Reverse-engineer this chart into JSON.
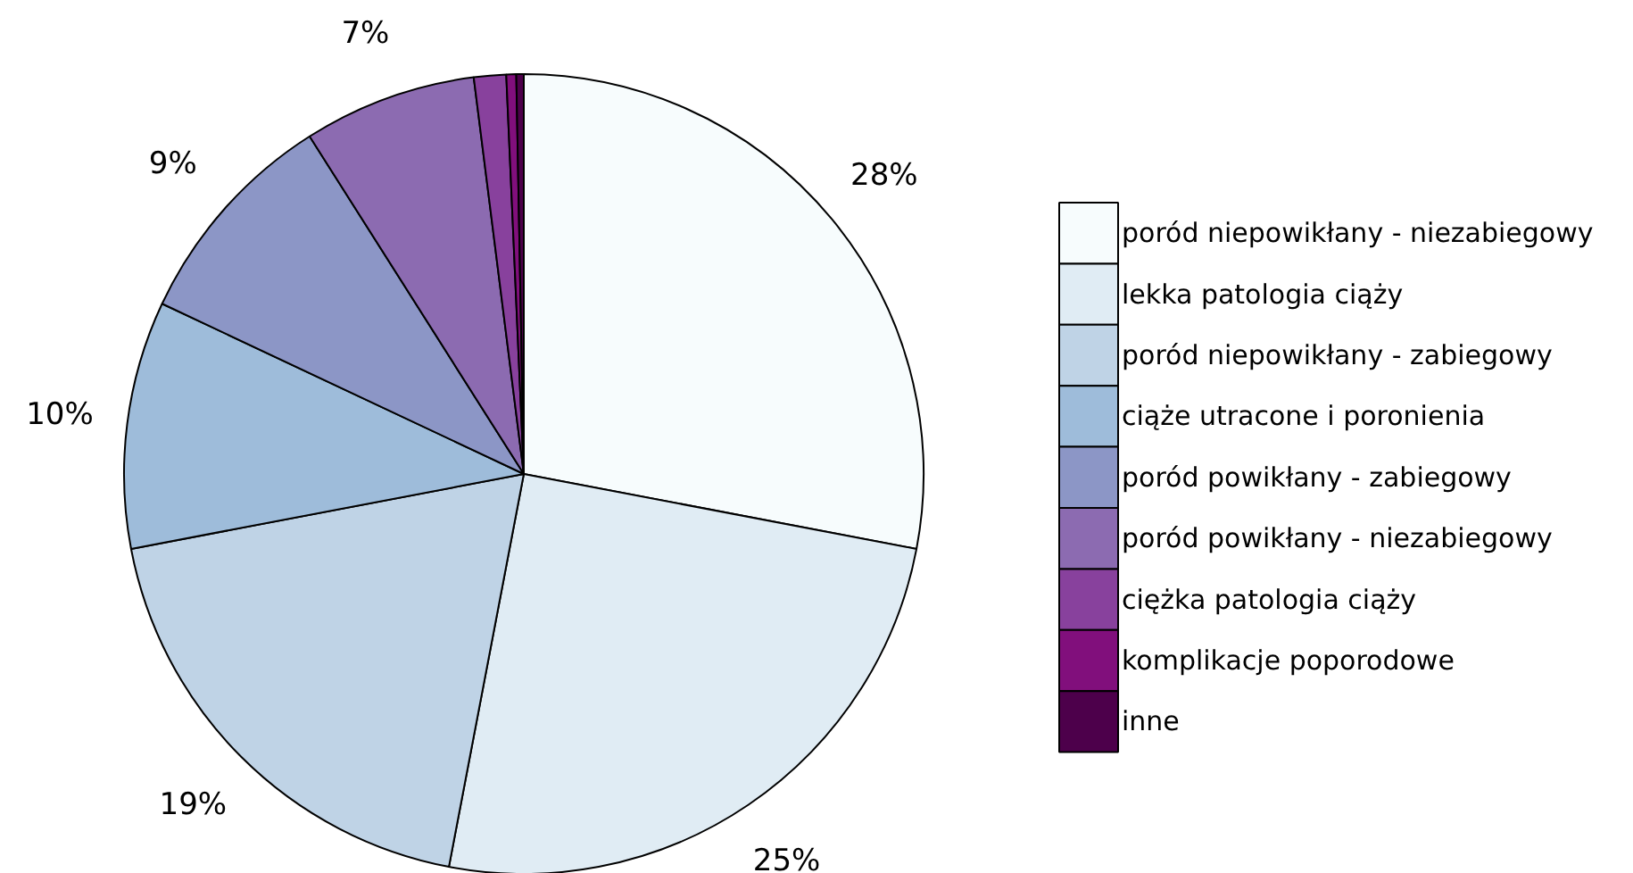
{
  "chart_data": {
    "type": "pie",
    "categories": [
      "poród niepowikłany - niezabiegowy",
      "lekka patologia ciąży",
      "poród niepowikłany - zabiegowy",
      "ciąże utracone i poronienia",
      "poród powikłany - zabiegowy",
      "poród powikłany - niezabiegowy",
      "ciężka patologia ciąży",
      "komplikacje poporodowe",
      "inne"
    ],
    "values": [
      28,
      25,
      19,
      10,
      9,
      7,
      1.3,
      0.4,
      0.3
    ],
    "value_labels": [
      "28%",
      "25%",
      "19%",
      "10%",
      "9%",
      "7%",
      null,
      null,
      null
    ],
    "colors": [
      "#f7fcfd",
      "#e0ecf4",
      "#bfd3e6",
      "#9ebcda",
      "#8c96c6",
      "#8c6bb1",
      "#88419d",
      "#810f7c",
      "#4d004b"
    ],
    "legend": "right"
  }
}
